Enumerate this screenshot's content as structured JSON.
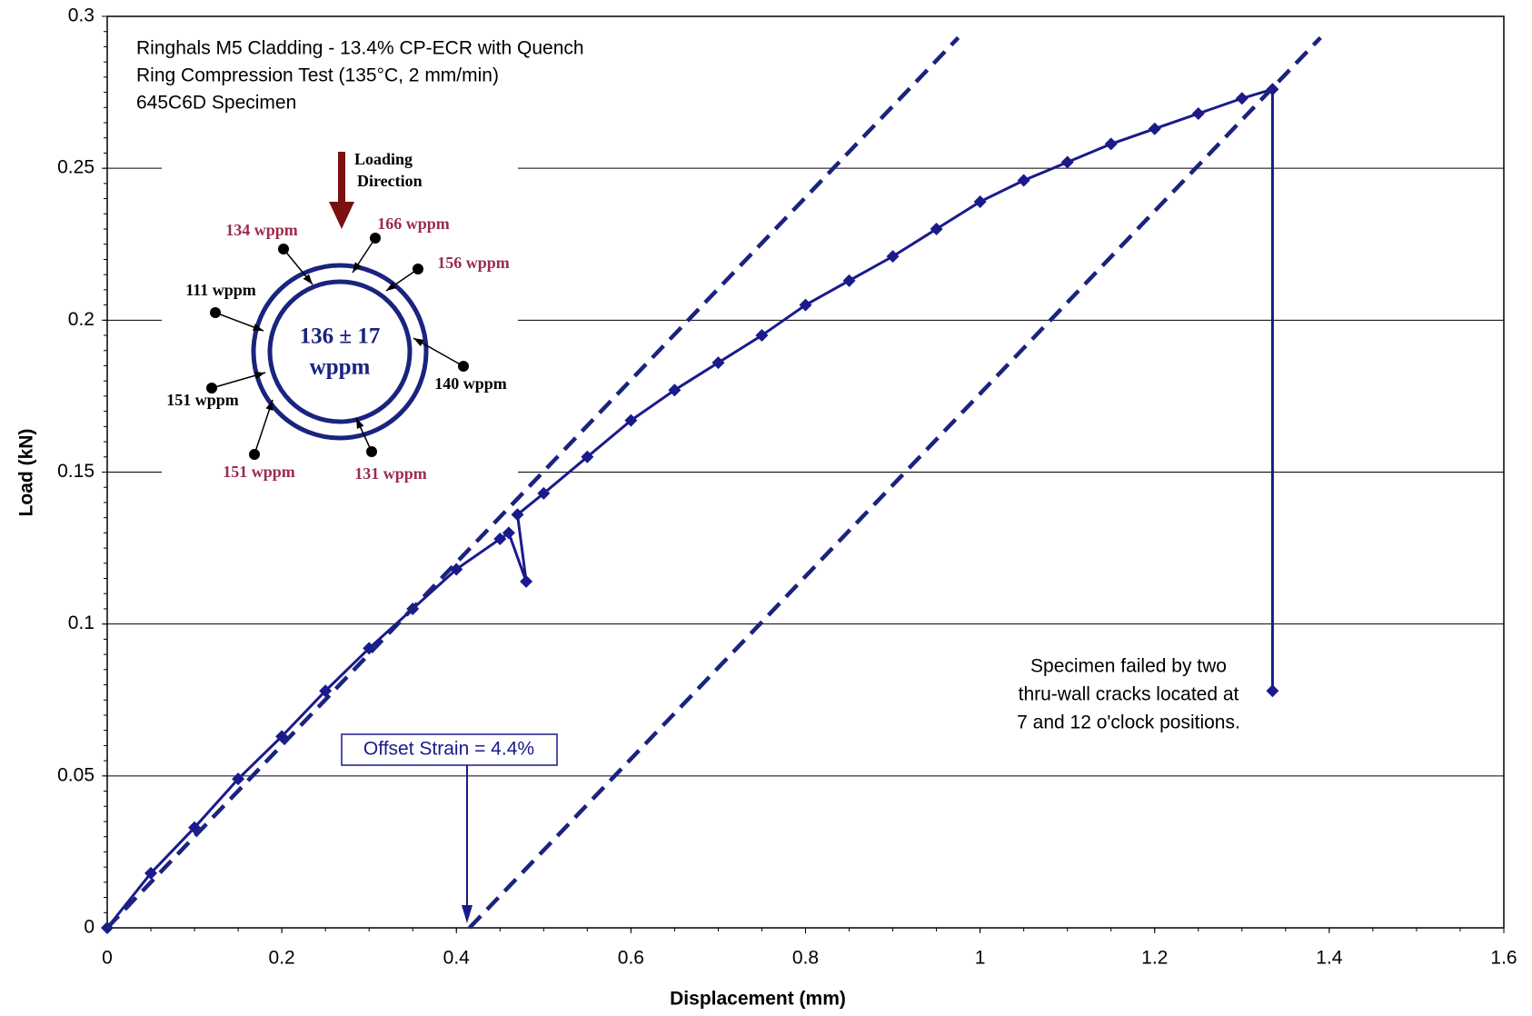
{
  "chart_data": {
    "type": "line",
    "title_lines": [
      "Ringhals M5 Cladding - 13.4% CP-ECR with Quench",
      "Ring Compression Test (135°C, 2 mm/min)",
      "645C6D Specimen"
    ],
    "x_label": "Displacement (mm)",
    "y_label": "Load (kN)",
    "xlim": [
      0,
      1.6
    ],
    "ylim": [
      0,
      0.3
    ],
    "xticks": [
      0,
      0.2,
      0.4,
      0.6,
      0.8,
      1,
      1.2,
      1.4,
      1.6
    ],
    "yticks": [
      0,
      0.05,
      0.1,
      0.15,
      0.2,
      0.25,
      0.3
    ],
    "grid": true,
    "series": [
      {
        "color": "#1a1a8c",
        "style": "markers",
        "x": [
          0,
          0.05,
          0.1,
          0.15,
          0.2,
          0.25,
          0.3,
          0.35,
          0.4,
          0.45,
          0.46,
          0.48,
          0.47,
          0.5,
          0.55,
          0.6,
          0.65,
          0.7,
          0.75,
          0.8,
          0.85,
          0.9,
          0.95,
          1.0,
          1.05,
          1.1,
          1.15,
          1.2,
          1.25,
          1.3,
          1.335,
          1.335
        ],
        "values": [
          0,
          0.018,
          0.033,
          0.049,
          0.063,
          0.078,
          0.092,
          0.105,
          0.118,
          0.128,
          0.13,
          0.114,
          0.136,
          0.143,
          0.155,
          0.167,
          0.177,
          0.186,
          0.195,
          0.205,
          0.213,
          0.221,
          0.23,
          0.239,
          0.246,
          0.252,
          0.258,
          0.263,
          0.268,
          0.273,
          0.276,
          0.078
        ]
      },
      {
        "color": "#1a237e",
        "style": "dashed",
        "x": [
          0,
          0.975
        ],
        "values": [
          0,
          0.293
        ]
      },
      {
        "color": "#1a237e",
        "style": "dashed",
        "x": [
          0.415,
          1.39
        ],
        "values": [
          0,
          0.293
        ]
      }
    ],
    "annotations": {
      "offset_strain": "Offset Strain = 4.4%",
      "failure": [
        "Specimen failed by two",
        "thru-wall cracks located at",
        "7 and 12 o'clock positions."
      ]
    },
    "inset": {
      "loading": [
        "Loading",
        "Direction"
      ],
      "center": [
        "136 ± 17",
        "wppm"
      ],
      "labels": [
        {
          "text": "134 wppm",
          "color": "#9b2c4b"
        },
        {
          "text": "166 wppm",
          "color": "#9b2c4b"
        },
        {
          "text": "156 wppm",
          "color": "#9b2c4b"
        },
        {
          "text": "111 wppm",
          "color": "#000000"
        },
        {
          "text": "140 wppm",
          "color": "#000000"
        },
        {
          "text": "151 wppm",
          "color": "#000000"
        },
        {
          "text": "151 wppm",
          "color": "#9b2c4b"
        },
        {
          "text": "131 wppm",
          "color": "#9b2c4b"
        }
      ]
    }
  }
}
